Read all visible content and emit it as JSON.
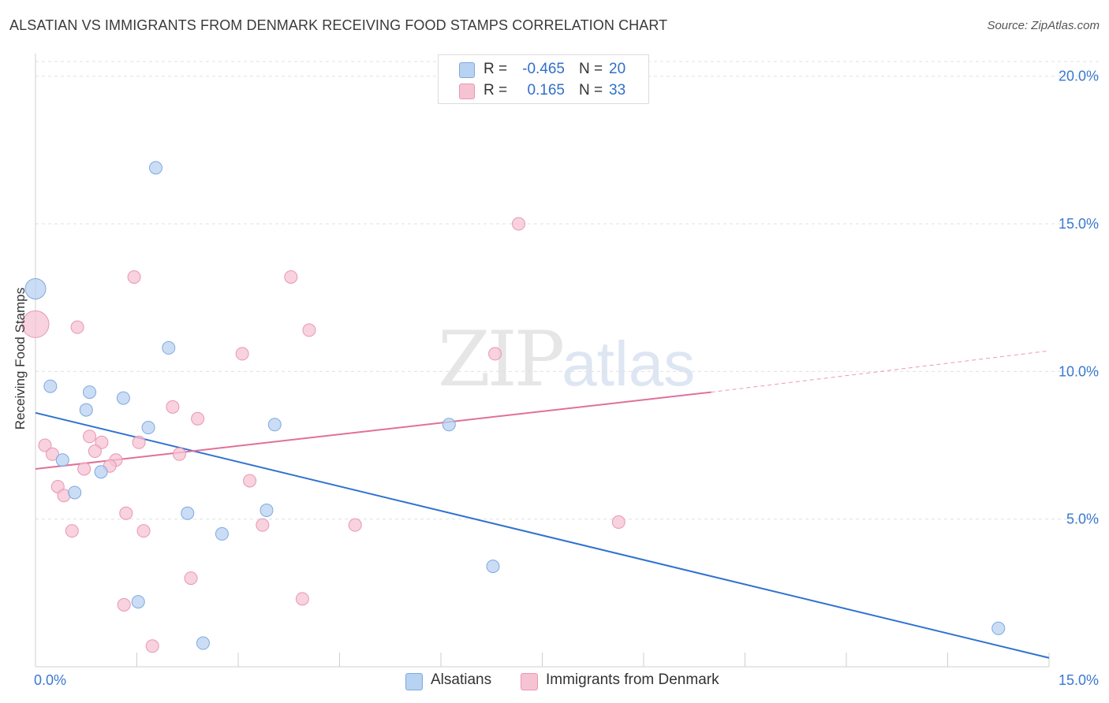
{
  "title": "ALSATIAN VS IMMIGRANTS FROM DENMARK RECEIVING FOOD STAMPS CORRELATION CHART",
  "source": "Source: ZipAtlas.com",
  "watermark": {
    "zip": "ZIP",
    "atlas": "atlas"
  },
  "legend": {
    "rows": [
      {
        "r_label": "R =",
        "r_value": "-0.465",
        "n_label": "N =",
        "n_value": "20"
      },
      {
        "r_label": "R =",
        "r_value": "0.165",
        "n_label": "N =",
        "n_value": "33"
      }
    ]
  },
  "bottom_legend": [
    "Alsatians",
    "Immigrants from Denmark"
  ],
  "colors": {
    "blue_fill": "#b8d2f2",
    "blue_stroke": "#7ea9e0",
    "blue_line": "#2f72d0",
    "pink_fill": "#f6c3d3",
    "pink_stroke": "#e897b2",
    "pink_line": "#e0709a",
    "tick_text": "#3a78d0",
    "grid": "#e0e0e0"
  },
  "chart_data": {
    "type": "scatter",
    "title": "ALSATIAN VS IMMIGRANTS FROM DENMARK RECEIVING FOOD STAMPS CORRELATION CHART",
    "xlabel": "",
    "ylabel": "Receiving Food Stamps",
    "xlim": [
      0,
      15
    ],
    "ylim": [
      0,
      20.5
    ],
    "x_tick_labels": [
      "0.0%",
      "15.0%"
    ],
    "y_ticks": [
      5,
      10,
      15,
      20
    ],
    "y_tick_labels": [
      "5.0%",
      "10.0%",
      "15.0%",
      "20.0%"
    ],
    "series": [
      {
        "name": "Alsatians",
        "color": "blue",
        "R": -0.465,
        "N": 20,
        "points": [
          [
            0.0,
            12.8
          ],
          [
            1.78,
            16.9
          ],
          [
            0.22,
            9.5
          ],
          [
            0.8,
            9.3
          ],
          [
            1.3,
            9.1
          ],
          [
            0.75,
            8.7
          ],
          [
            1.97,
            10.8
          ],
          [
            1.67,
            8.1
          ],
          [
            3.54,
            8.2
          ],
          [
            0.4,
            7.0
          ],
          [
            0.97,
            6.6
          ],
          [
            0.58,
            5.9
          ],
          [
            2.25,
            5.2
          ],
          [
            3.42,
            5.3
          ],
          [
            2.76,
            4.5
          ],
          [
            6.77,
            3.4
          ],
          [
            6.12,
            8.2
          ],
          [
            1.52,
            2.2
          ],
          [
            2.48,
            0.8
          ],
          [
            14.25,
            1.3
          ]
        ],
        "trend": {
          "x": [
            0,
            15
          ],
          "y": [
            8.6,
            0.3
          ]
        }
      },
      {
        "name": "Immigrants from Denmark",
        "color": "pink",
        "R": 0.165,
        "N": 33,
        "points": [
          [
            0.0,
            11.6
          ],
          [
            0.62,
            11.5
          ],
          [
            1.46,
            13.2
          ],
          [
            3.78,
            13.2
          ],
          [
            7.15,
            15.0
          ],
          [
            4.05,
            11.4
          ],
          [
            3.06,
            10.6
          ],
          [
            6.8,
            10.6
          ],
          [
            2.03,
            8.8
          ],
          [
            2.4,
            8.4
          ],
          [
            0.14,
            7.5
          ],
          [
            0.25,
            7.2
          ],
          [
            0.8,
            7.8
          ],
          [
            0.98,
            7.6
          ],
          [
            1.53,
            7.6
          ],
          [
            0.88,
            7.3
          ],
          [
            2.13,
            7.2
          ],
          [
            1.19,
            7.0
          ],
          [
            1.1,
            6.8
          ],
          [
            0.72,
            6.7
          ],
          [
            0.33,
            6.1
          ],
          [
            0.42,
            5.8
          ],
          [
            3.17,
            6.3
          ],
          [
            1.34,
            5.2
          ],
          [
            0.54,
            4.6
          ],
          [
            1.6,
            4.6
          ],
          [
            3.36,
            4.8
          ],
          [
            4.73,
            4.8
          ],
          [
            8.63,
            4.9
          ],
          [
            2.3,
            3.0
          ],
          [
            1.31,
            2.1
          ],
          [
            3.95,
            2.3
          ],
          [
            1.73,
            0.7
          ]
        ],
        "trend": {
          "x": [
            0,
            10.0
          ],
          "y": [
            6.7,
            9.3
          ],
          "dashed_x": [
            10.0,
            15.0
          ],
          "dashed_y": [
            9.3,
            10.7
          ]
        }
      }
    ]
  }
}
